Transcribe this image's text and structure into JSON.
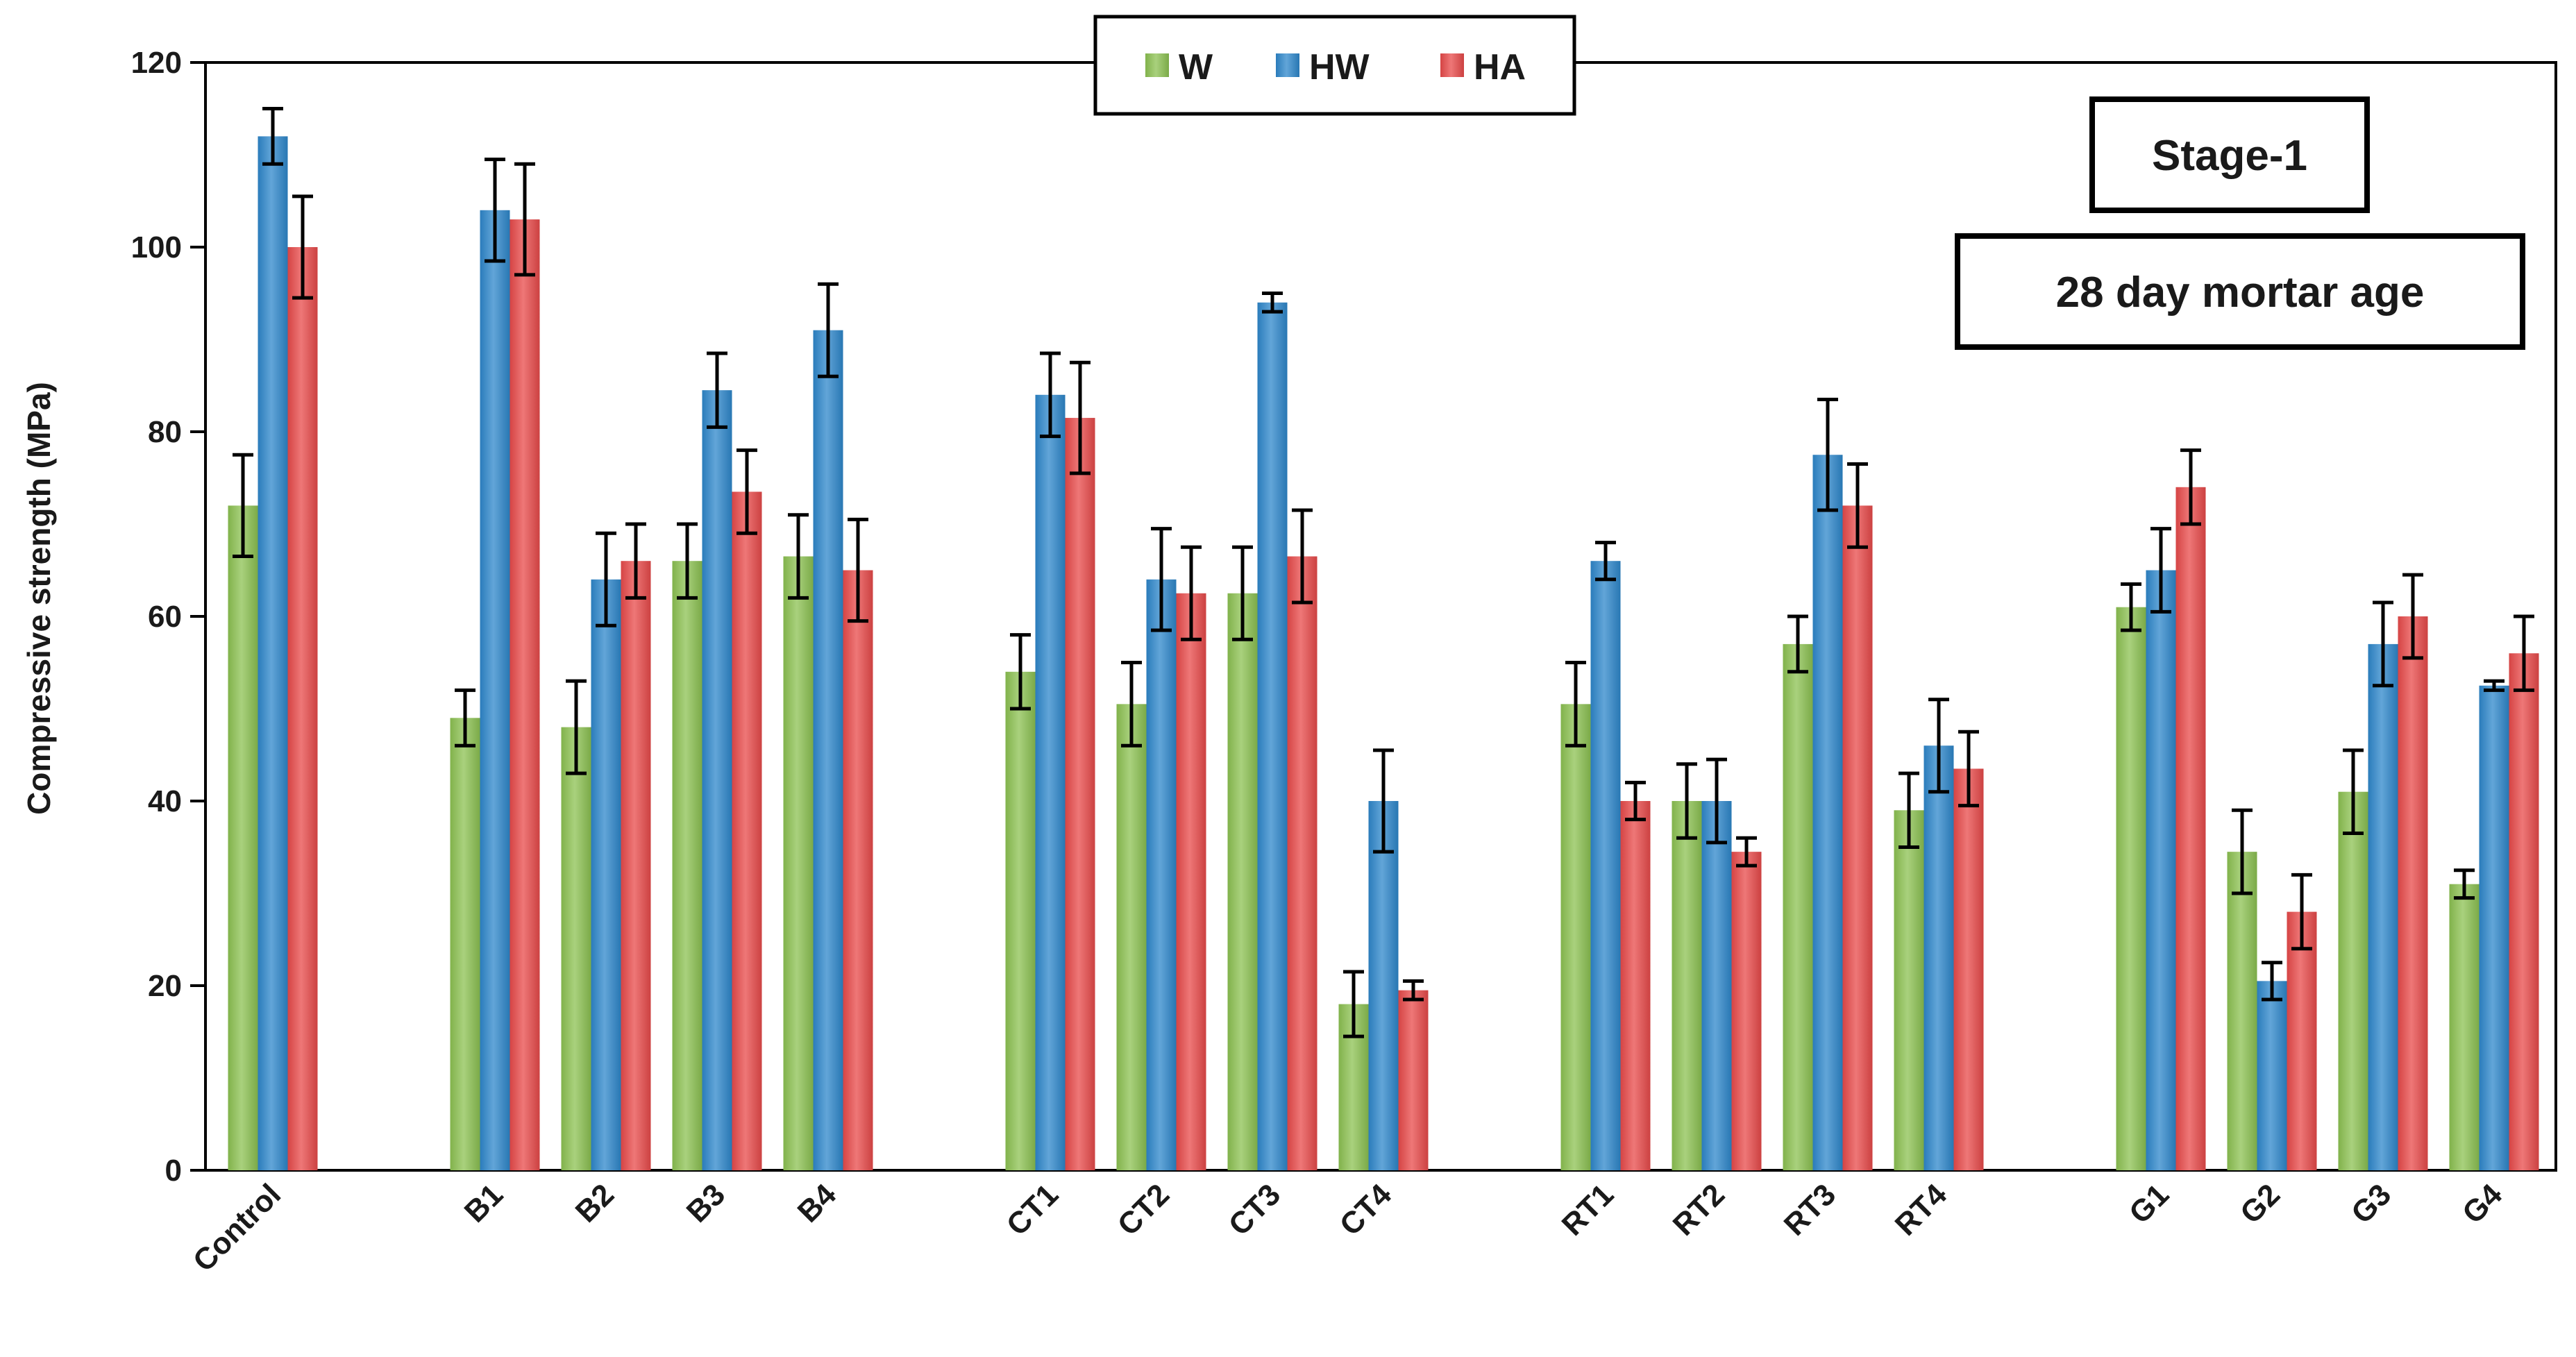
{
  "chart_data": {
    "type": "bar",
    "ylabel": "Compressive strength (MPa)",
    "xlabel": "",
    "ylim": [
      0,
      120
    ],
    "yticks": [
      0,
      20,
      40,
      60,
      80,
      100,
      120
    ],
    "grid": false,
    "legend_position": "top-center",
    "annotations": [
      "Stage-1",
      "28 day mortar age"
    ],
    "categories": [
      "Control",
      "B1",
      "B2",
      "B3",
      "B4",
      "CT1",
      "CT2",
      "CT3",
      "CT4",
      "RT1",
      "RT2",
      "RT3",
      "RT4",
      "G1",
      "G2",
      "G3",
      "G4"
    ],
    "groups": [
      [
        "Control"
      ],
      [
        "B1",
        "B2",
        "B3",
        "B4"
      ],
      [
        "CT1",
        "CT2",
        "CT3",
        "CT4"
      ],
      [
        "RT1",
        "RT2",
        "RT3",
        "RT4"
      ],
      [
        "G1",
        "G2",
        "G3",
        "G4"
      ]
    ],
    "series": [
      {
        "name": "W",
        "color": "#8cc152",
        "values": [
          72,
          49,
          48,
          66,
          66.5,
          54,
          50.5,
          62.5,
          18,
          50.5,
          40,
          57,
          39,
          61,
          34.5,
          41,
          31
        ],
        "errors": [
          5.5,
          3,
          5,
          4,
          4.5,
          4,
          4.5,
          5,
          3.5,
          4.5,
          4,
          3,
          4,
          2.5,
          4.5,
          4.5,
          1.5
        ]
      },
      {
        "name": "HW",
        "color": "#2e87cb",
        "values": [
          112,
          104,
          64,
          84.5,
          91,
          84,
          64,
          94,
          40,
          66,
          40,
          77.5,
          46,
          65,
          20.5,
          57,
          52.5
        ],
        "errors": [
          3,
          5.5,
          5,
          4,
          5,
          4.5,
          5.5,
          1,
          5.5,
          2,
          4.5,
          6,
          5,
          4.5,
          2,
          4.5,
          0.5
        ]
      },
      {
        "name": "HA",
        "color": "#e84a4a",
        "values": [
          100,
          103,
          66,
          73.5,
          65,
          81.5,
          62.5,
          66.5,
          19.5,
          40,
          34.5,
          72,
          43.5,
          74,
          28,
          60,
          56
        ],
        "errors": [
          5.5,
          6,
          4,
          4.5,
          5.5,
          6,
          5,
          5,
          1,
          2,
          1.5,
          4.5,
          4,
          4,
          4,
          4.5,
          4
        ]
      }
    ]
  }
}
